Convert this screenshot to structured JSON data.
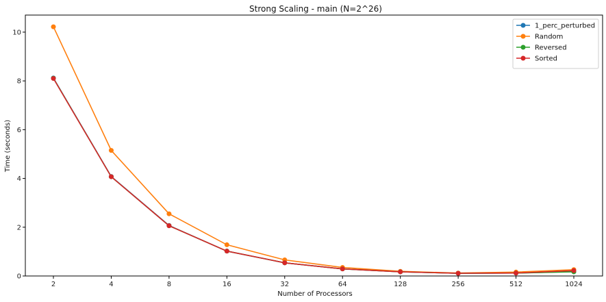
{
  "chart_data": {
    "type": "line",
    "title": "Strong Scaling - main (N=2^26)",
    "xlabel": "Number of Processors",
    "ylabel": "Time (seconds)",
    "categories": [
      "2",
      "4",
      "8",
      "16",
      "32",
      "64",
      "128",
      "256",
      "512",
      "1024"
    ],
    "ylim": [
      0,
      10.7
    ],
    "yticks": [
      "0",
      "2",
      "4",
      "6",
      "8",
      "10"
    ],
    "legend_position": "top-right",
    "grid": false,
    "series": [
      {
        "name": "1_perc_perturbed",
        "color": "#1f77b4",
        "values": [
          8.12,
          4.08,
          2.07,
          1.02,
          0.54,
          0.29,
          0.17,
          0.11,
          0.12,
          0.18
        ]
      },
      {
        "name": "Random",
        "color": "#ff7f0e",
        "values": [
          10.22,
          5.15,
          2.55,
          1.28,
          0.66,
          0.35,
          0.19,
          0.12,
          0.16,
          0.26
        ]
      },
      {
        "name": "Reversed",
        "color": "#2ca02c",
        "values": [
          8.11,
          4.07,
          2.06,
          1.02,
          0.54,
          0.29,
          0.17,
          0.11,
          0.12,
          0.17
        ]
      },
      {
        "name": "Sorted",
        "color": "#d62728",
        "values": [
          8.1,
          4.07,
          2.06,
          1.02,
          0.54,
          0.29,
          0.17,
          0.11,
          0.12,
          0.22
        ]
      }
    ]
  }
}
